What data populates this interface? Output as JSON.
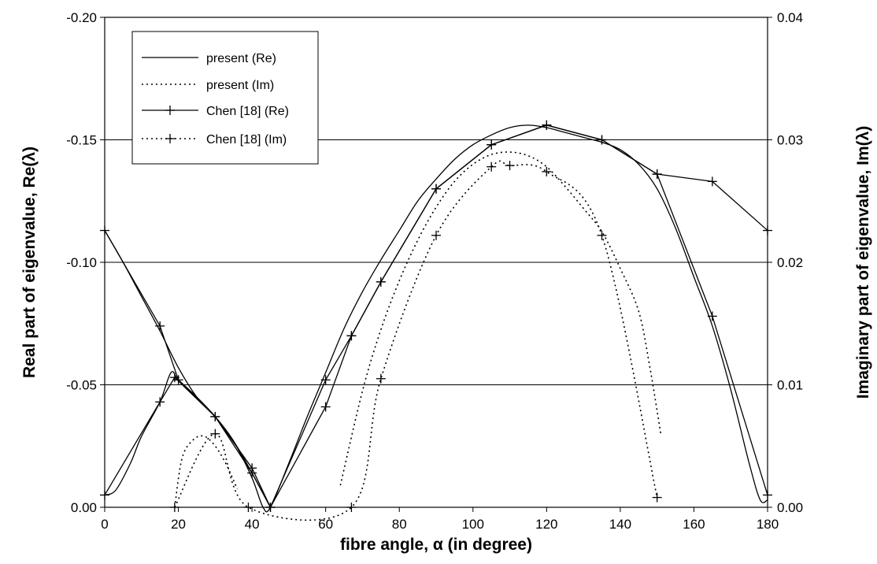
{
  "chart_data": {
    "type": "line",
    "xlabel": "fibre angle, α (in degree)",
    "ylabel_left": "Real part of eigenvalue, Re(λ)",
    "ylabel_right": "Imaginary part of eigenvalue, Im(λ)",
    "xlim": [
      0,
      180
    ],
    "x_ticks": [
      0,
      20,
      40,
      60,
      80,
      100,
      120,
      140,
      160,
      180
    ],
    "x_tick_labels": [
      "0",
      "20",
      "40",
      "60",
      "80",
      "100",
      "120",
      "140",
      "160",
      "180"
    ],
    "ylim_left": [
      0,
      -0.2
    ],
    "y_left_ticks": [
      0,
      -0.05,
      -0.1,
      -0.15,
      -0.2
    ],
    "y_left_tick_labels": [
      "0.00",
      "-0.05",
      "-0.10",
      "-0.15",
      "-0.20"
    ],
    "ylim_right": [
      0,
      0.04
    ],
    "y_right_ticks": [
      0,
      0.01,
      0.02,
      0.03,
      0.04
    ],
    "y_right_tick_labels": [
      "0.00",
      "0.01",
      "0.02",
      "0.03",
      "0.04"
    ],
    "grid": "horizontal",
    "legend_position": "top-left",
    "series": [
      {
        "name": "present (Re)",
        "axis": "left",
        "style": "solid",
        "marker": "none",
        "x": [
          0,
          5,
          10,
          15,
          20,
          25,
          30,
          35,
          40,
          43,
          45,
          50,
          55,
          60,
          65,
          70,
          75,
          80,
          85,
          90,
          95,
          100,
          105,
          110,
          115,
          120,
          125,
          130,
          135,
          140,
          145,
          150,
          155,
          160,
          165,
          170,
          175,
          178,
          180
        ],
        "y": [
          -0.113,
          -0.1,
          -0.086,
          -0.072,
          -0.057,
          -0.045,
          -0.037,
          -0.027,
          -0.012,
          0.0,
          0.0,
          -0.018,
          -0.037,
          -0.055,
          -0.073,
          -0.088,
          -0.101,
          -0.113,
          -0.125,
          -0.134,
          -0.142,
          -0.148,
          -0.152,
          -0.155,
          -0.156,
          -0.155,
          -0.153,
          -0.151,
          -0.149,
          -0.146,
          -0.14,
          -0.13,
          -0.114,
          -0.094,
          -0.074,
          -0.048,
          -0.018,
          -0.003,
          -0.003
        ]
      },
      {
        "name": "present (Re)",
        "axis": "left",
        "style": "solid",
        "marker": "none",
        "x": [
          0,
          3,
          7,
          10,
          15,
          18,
          20,
          25,
          30,
          35,
          40,
          45
        ],
        "y": [
          -0.005,
          -0.007,
          -0.018,
          -0.029,
          -0.043,
          -0.055,
          -0.052,
          -0.045,
          -0.037,
          -0.027,
          -0.014,
          0.0
        ]
      },
      {
        "name": "present (Im)",
        "axis": "right",
        "style": "dotted",
        "marker": "none",
        "x": [
          19,
          21,
          24,
          27,
          30,
          33,
          36
        ],
        "y": [
          0.0,
          0.004,
          0.0055,
          0.0058,
          0.005,
          0.0035,
          0.0015
        ]
      },
      {
        "name": "present (Im)",
        "axis": "right",
        "style": "dotted",
        "marker": "none",
        "x": [
          64,
          70,
          75,
          80,
          85,
          90,
          95,
          100,
          105,
          110,
          115,
          120,
          125,
          130,
          135,
          140,
          145,
          148,
          151
        ],
        "y": [
          0.0018,
          0.0095,
          0.0145,
          0.0185,
          0.0218,
          0.0245,
          0.0266,
          0.028,
          0.0288,
          0.029,
          0.0287,
          0.0278,
          0.0262,
          0.0244,
          0.0225,
          0.0195,
          0.016,
          0.0115,
          0.006
        ]
      },
      {
        "name": "Chen [18] (Re)",
        "axis": "left",
        "style": "solid",
        "marker": "plus",
        "x": [
          0,
          15,
          20,
          30,
          40,
          45,
          60,
          67,
          75,
          90,
          105,
          120,
          135,
          150,
          165,
          180
        ],
        "y": [
          -0.113,
          -0.074,
          -0.052,
          -0.037,
          -0.016,
          0.0,
          -0.052,
          -0.07,
          -0.092,
          -0.13,
          -0.148,
          -0.156,
          -0.15,
          -0.136,
          -0.133,
          -0.113
        ]
      },
      {
        "name": "Chen [18] (Re)",
        "axis": "left",
        "style": "solid",
        "marker": "plus",
        "x": [
          0,
          15,
          19,
          30,
          40,
          45,
          60,
          67,
          75,
          90,
          105,
          120,
          135,
          150,
          165,
          180
        ],
        "y": [
          -0.005,
          -0.043,
          -0.053,
          -0.037,
          -0.014,
          0.0,
          -0.041,
          -0.07,
          -0.092,
          -0.13,
          -0.148,
          -0.156,
          -0.15,
          -0.136,
          -0.078,
          -0.005
        ]
      },
      {
        "name": "Chen [18] (Im)",
        "axis": "right",
        "style": "dotted",
        "marker": "plus",
        "x": [
          19,
          30,
          39,
          67,
          75,
          90,
          105,
          110,
          120,
          135,
          150
        ],
        "y": [
          0.0,
          0.006,
          0.0,
          0.0,
          0.0105,
          0.0222,
          0.0278,
          0.0279,
          0.0274,
          0.0222,
          0.0008
        ]
      }
    ],
    "legend": [
      {
        "label": "present (Re)",
        "style": "solid",
        "marker": "none"
      },
      {
        "label": "present (Im)",
        "style": "dotted",
        "marker": "none"
      },
      {
        "label": "Chen [18] (Re)",
        "style": "solid",
        "marker": "plus"
      },
      {
        "label": "Chen [18] (Im)",
        "style": "dotted",
        "marker": "plus"
      }
    ]
  }
}
